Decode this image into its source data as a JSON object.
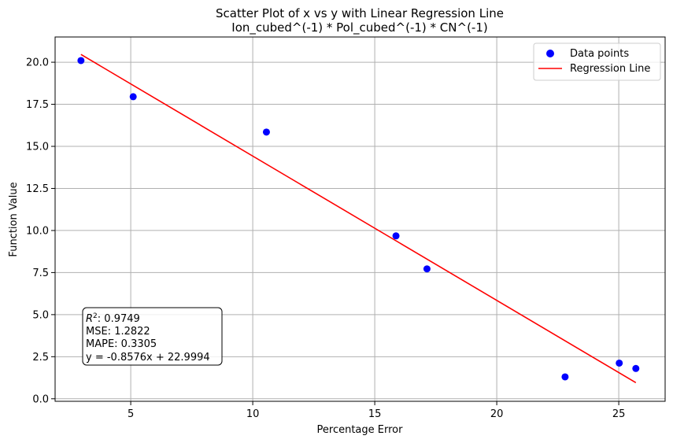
{
  "chart_data": {
    "type": "scatter",
    "title": "Scatter Plot of x vs y with Linear Regression Line",
    "subtitle": "Ion_cubed^(-1) * Pol_cubed^(-1) * CN^(-1)",
    "xlabel": "Percentage Error",
    "ylabel": "Function Value",
    "xlim": [
      1.9,
      26.9
    ],
    "ylim": [
      -0.15,
      21.5
    ],
    "grid": true,
    "legend_position": "top-right",
    "xticks": [
      5,
      10,
      15,
      20,
      25
    ],
    "xtick_labels": [
      "5",
      "10",
      "15",
      "20",
      "25"
    ],
    "yticks": [
      0.0,
      2.5,
      5.0,
      7.5,
      10.0,
      12.5,
      15.0,
      17.5,
      20.0
    ],
    "ytick_labels": [
      "0.0",
      "2.5",
      "5.0",
      "7.5",
      "10.0",
      "12.5",
      "15.0",
      "17.5",
      "20.0"
    ],
    "series": [
      {
        "name": "Data points",
        "kind": "scatter",
        "color": "#0000ff",
        "points": [
          {
            "x": 2.96,
            "y": 20.1
          },
          {
            "x": 5.1,
            "y": 17.95
          },
          {
            "x": 10.56,
            "y": 15.85
          },
          {
            "x": 15.87,
            "y": 9.68
          },
          {
            "x": 17.14,
            "y": 7.72
          },
          {
            "x": 22.8,
            "y": 1.3
          },
          {
            "x": 25.02,
            "y": 2.12
          },
          {
            "x": 25.7,
            "y": 1.8
          }
        ]
      },
      {
        "name": "Regression Line",
        "kind": "line",
        "color": "#ff0000",
        "slope": -0.8576,
        "intercept": 22.9994,
        "x_range": [
          2.96,
          25.7
        ]
      }
    ],
    "annotation": {
      "r2_prefix": "R",
      "r2_sup": "2",
      "r2_value": ": 0.9749",
      "lines": [
        "MSE: 1.2822",
        "MAPE: 0.3305",
        "y = -0.8576x + 22.9994"
      ]
    }
  }
}
